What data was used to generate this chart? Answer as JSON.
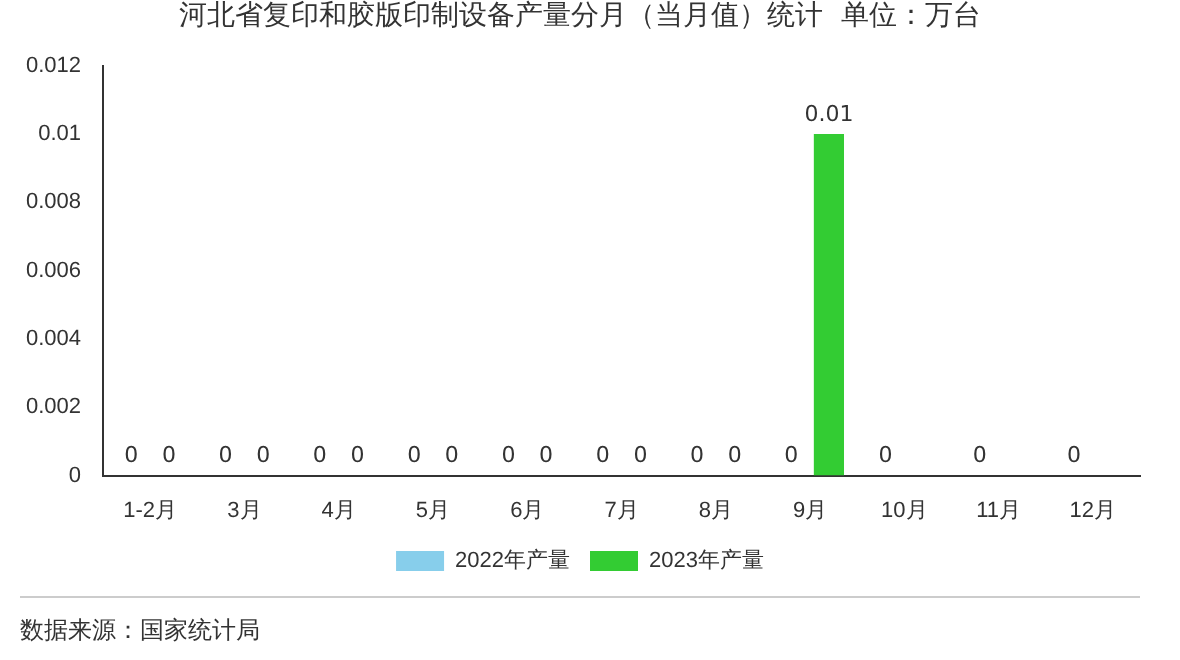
{
  "chart_data": {
    "type": "bar",
    "title": "河北省复印和胶版印制设备产量分月（当月值）统计  单位：万台",
    "categories": [
      "1-2月",
      "3月",
      "4月",
      "5月",
      "6月",
      "7月",
      "8月",
      "9月",
      "10月",
      "11月",
      "12月"
    ],
    "series": [
      {
        "name": "2022年产量",
        "color": "#87ceeb",
        "values": [
          0,
          0,
          0,
          0,
          0,
          0,
          0,
          0,
          0,
          0,
          0
        ]
      },
      {
        "name": "2023年产量",
        "color": "#33cc33",
        "values": [
          0,
          0,
          0,
          0,
          0,
          0,
          0,
          0.01,
          null,
          null,
          null
        ]
      }
    ],
    "ylim": [
      0,
      0.012
    ],
    "yticks": [
      0,
      0.002,
      0.004,
      0.006,
      0.008,
      0.01,
      0.012
    ],
    "grid": false,
    "legend": "bottom",
    "data_labels": true,
    "annotations": [
      "数据来源：国家统计局"
    ]
  }
}
